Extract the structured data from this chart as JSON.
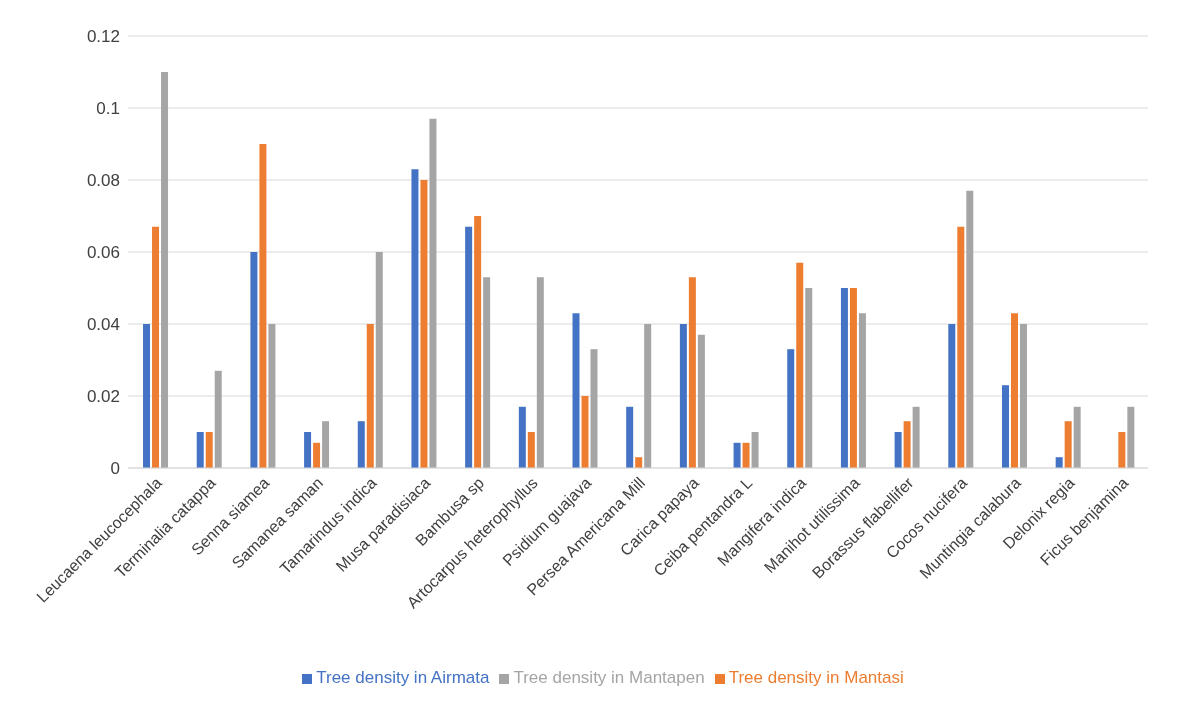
{
  "chart_data": {
    "type": "bar",
    "categories": [
      "Leucaena leucocephala",
      "Terminalia catappa",
      "Senna siamea",
      "Samanea saman",
      "Tamarindus indica",
      "Musa paradisiaca",
      "Bambusa sp",
      "Artocarpus heterophyllus",
      "Psidium guajava",
      "Persea Americana Mill",
      "Carica papaya",
      "Ceiba pentandra L",
      "Mangifera indica",
      "Manihot utilissima",
      "Borassus flabellifer",
      "Cocos nucifera",
      "Muntingia calabura",
      "Delonix regia",
      "Ficus benjamina"
    ],
    "series": [
      {
        "name": "Tree density in Airmata",
        "color": "#4472c4",
        "values": [
          0.04,
          0.01,
          0.06,
          0.01,
          0.013,
          0.083,
          0.067,
          0.017,
          0.043,
          0.017,
          0.04,
          0.007,
          0.033,
          0.05,
          0.01,
          0.04,
          0.023,
          0.003,
          0
        ]
      },
      {
        "name": "Tree density in Mantasi",
        "color": "#ed7d31",
        "values": [
          0.067,
          0.01,
          0.09,
          0.007,
          0.04,
          0.08,
          0.07,
          0.01,
          0.02,
          0.003,
          0.053,
          0.007,
          0.057,
          0.05,
          0.013,
          0.067,
          0.043,
          0.013,
          0.01
        ]
      },
      {
        "name": "Tree density in Mantapen",
        "color": "#a5a5a5",
        "values": [
          0.11,
          0.027,
          0.04,
          0.013,
          0.06,
          0.097,
          0.053,
          0.053,
          0.033,
          0.04,
          0.037,
          0.01,
          0.05,
          0.043,
          0.017,
          0.077,
          0.04,
          0.017,
          0.017
        ]
      }
    ],
    "ylim": [
      0,
      0.12
    ],
    "yticks": [
      0,
      0.02,
      0.04,
      0.06,
      0.08,
      0.1,
      0.12
    ],
    "grid": "y",
    "legend": "bottom"
  }
}
